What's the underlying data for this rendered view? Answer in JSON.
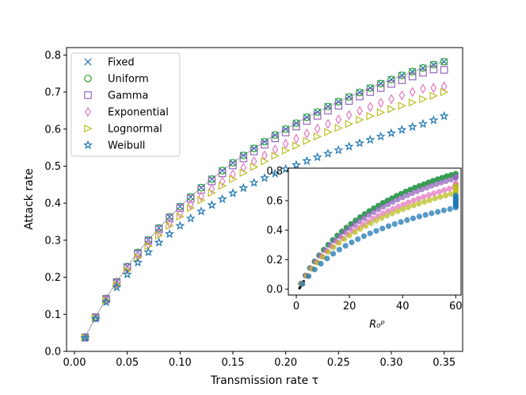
{
  "chart_data": {
    "type": "scatter",
    "title": "",
    "xlabel": "Transmission rate τ",
    "ylabel": "Attack rate",
    "xlim": [
      -0.0075,
      0.3675
    ],
    "ylim": [
      0,
      0.82
    ],
    "x_ticks": [
      "0.00",
      "0.05",
      "0.10",
      "0.15",
      "0.20",
      "0.25",
      "0.30",
      "0.35"
    ],
    "y_ticks": [
      "0.0",
      "0.1",
      "0.2",
      "0.3",
      "0.4",
      "0.5",
      "0.6",
      "0.7",
      "0.8"
    ],
    "x": [
      0.01,
      0.02,
      0.03,
      0.04,
      0.05,
      0.06,
      0.07,
      0.08,
      0.09,
      0.1,
      0.11,
      0.12,
      0.13,
      0.14,
      0.15,
      0.16,
      0.17,
      0.18,
      0.19,
      0.2,
      0.21,
      0.22,
      0.23,
      0.24,
      0.25,
      0.26,
      0.27,
      0.28,
      0.29,
      0.3,
      0.31,
      0.32,
      0.33,
      0.34,
      0.35
    ],
    "legend_position": "top-left",
    "series": [
      {
        "name": "Fixed",
        "marker": "x",
        "color": "#1f77b4",
        "values": [
          0.038,
          0.093,
          0.143,
          0.188,
          0.229,
          0.267,
          0.301,
          0.333,
          0.363,
          0.391,
          0.417,
          0.442,
          0.465,
          0.488,
          0.509,
          0.529,
          0.548,
          0.566,
          0.584,
          0.6,
          0.616,
          0.632,
          0.646,
          0.661,
          0.674,
          0.687,
          0.699,
          0.711,
          0.723,
          0.734,
          0.745,
          0.755,
          0.765,
          0.774,
          0.782
        ]
      },
      {
        "name": "Uniform",
        "marker": "circle",
        "color": "#2ca02c",
        "values": [
          0.038,
          0.093,
          0.143,
          0.188,
          0.229,
          0.267,
          0.301,
          0.333,
          0.363,
          0.391,
          0.417,
          0.442,
          0.465,
          0.488,
          0.509,
          0.529,
          0.548,
          0.566,
          0.584,
          0.6,
          0.616,
          0.632,
          0.646,
          0.661,
          0.674,
          0.687,
          0.699,
          0.711,
          0.723,
          0.734,
          0.745,
          0.755,
          0.765,
          0.774,
          0.782
        ]
      },
      {
        "name": "Gamma",
        "marker": "square",
        "color": "#9467bd",
        "values": [
          0.038,
          0.092,
          0.141,
          0.186,
          0.227,
          0.264,
          0.298,
          0.33,
          0.359,
          0.387,
          0.412,
          0.436,
          0.459,
          0.481,
          0.502,
          0.521,
          0.54,
          0.558,
          0.575,
          0.591,
          0.607,
          0.622,
          0.636,
          0.65,
          0.663,
          0.676,
          0.688,
          0.7,
          0.711,
          0.722,
          0.732,
          0.742,
          0.752,
          0.761,
          0.76
        ]
      },
      {
        "name": "Exponential",
        "marker": "diamond",
        "color": "#e377c2",
        "values": [
          0.037,
          0.091,
          0.139,
          0.182,
          0.221,
          0.257,
          0.289,
          0.319,
          0.346,
          0.372,
          0.396,
          0.418,
          0.439,
          0.459,
          0.478,
          0.496,
          0.513,
          0.529,
          0.545,
          0.56,
          0.574,
          0.588,
          0.601,
          0.614,
          0.626,
          0.638,
          0.649,
          0.66,
          0.671,
          0.681,
          0.691,
          0.7,
          0.709,
          0.711,
          0.715
        ]
      },
      {
        "name": "Lognormal",
        "marker": "triangle-right",
        "color": "#bcbd22",
        "values": [
          0.037,
          0.09,
          0.138,
          0.18,
          0.218,
          0.253,
          0.284,
          0.313,
          0.339,
          0.364,
          0.387,
          0.408,
          0.428,
          0.447,
          0.465,
          0.482,
          0.498,
          0.513,
          0.528,
          0.542,
          0.555,
          0.568,
          0.58,
          0.592,
          0.603,
          0.614,
          0.625,
          0.635,
          0.645,
          0.654,
          0.663,
          0.672,
          0.681,
          0.69,
          0.7
        ]
      },
      {
        "name": "Weibull",
        "marker": "star",
        "color": "#1f77b4",
        "values": [
          0.036,
          0.088,
          0.133,
          0.173,
          0.208,
          0.24,
          0.268,
          0.294,
          0.317,
          0.339,
          0.359,
          0.378,
          0.395,
          0.411,
          0.427,
          0.441,
          0.455,
          0.468,
          0.48,
          0.492,
          0.503,
          0.514,
          0.524,
          0.534,
          0.543,
          0.553,
          0.562,
          0.571,
          0.58,
          0.589,
          0.598,
          0.606,
          0.614,
          0.624,
          0.635
        ]
      }
    ],
    "inset": {
      "type": "scatter",
      "xlabel": "R₀ᵖ",
      "xlim": [
        -3,
        62
      ],
      "ylim": [
        -0.04,
        0.82
      ],
      "x_ticks": [
        "0",
        "20",
        "40",
        "60"
      ],
      "y_ticks": [
        "0.0",
        "0.2",
        "0.4",
        "0.6",
        "0.8"
      ],
      "x_max_R0": 60,
      "reference_line_color": "#000000",
      "colors": [
        "#1f77b4",
        "#2ca02c",
        "#9467bd",
        "#e377c2",
        "#bcbd22",
        "#1f77b4"
      ]
    }
  }
}
